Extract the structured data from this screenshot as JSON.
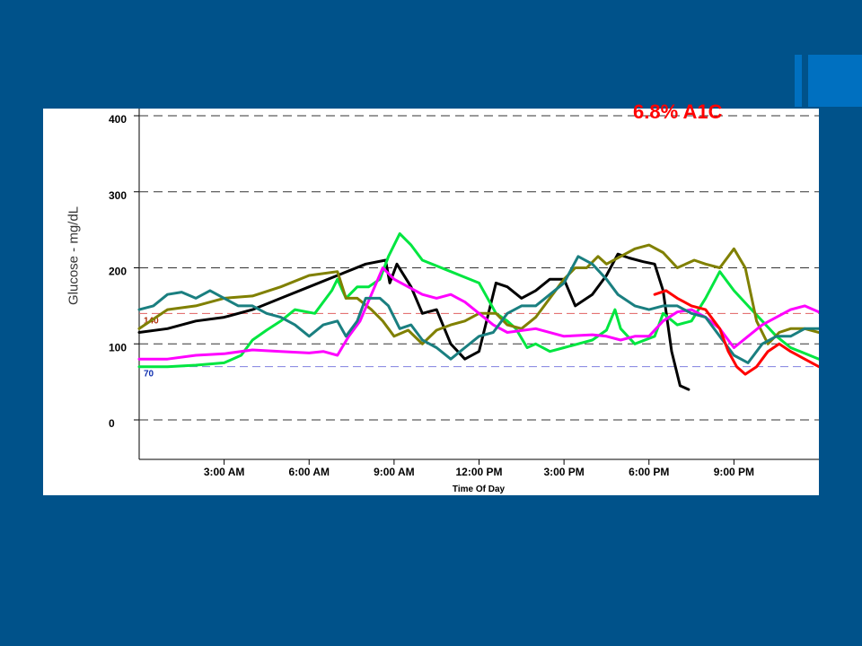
{
  "colors": {
    "background": "#00528a",
    "accent": "#0070c0",
    "title": "#ff0000"
  },
  "chart_data": {
    "type": "line",
    "title": "6.8% A1C",
    "xlabel": "Time Of Day",
    "ylabel": "Glucose - mg/dL",
    "xlim": [
      0,
      24
    ],
    "ylim": [
      -20,
      400
    ],
    "y_ticks": [
      0,
      100,
      200,
      300,
      400
    ],
    "x_ticks": [
      {
        "hour": 3,
        "label": "3:00 AM"
      },
      {
        "hour": 6,
        "label": "6:00 AM"
      },
      {
        "hour": 9,
        "label": "9:00 AM"
      },
      {
        "hour": 12,
        "label": "12:00 PM"
      },
      {
        "hour": 15,
        "label": "3:00 PM"
      },
      {
        "hour": 18,
        "label": "6:00 PM"
      },
      {
        "hour": 21,
        "label": "9:00 PM"
      }
    ],
    "grid": "horizontal-dashed",
    "reference_lines": [
      {
        "value": 140,
        "label": "140",
        "color": "#e06060",
        "text_color": "#b03010"
      },
      {
        "value": 70,
        "label": "70",
        "color": "#8080e0",
        "text_color": "#1030b0"
      }
    ],
    "series": [
      {
        "color": "#000000",
        "points": [
          [
            0,
            115
          ],
          [
            1,
            120
          ],
          [
            2,
            130
          ],
          [
            3,
            135
          ],
          [
            4,
            145
          ],
          [
            5,
            160
          ],
          [
            6,
            175
          ],
          [
            7,
            190
          ],
          [
            8,
            205
          ],
          [
            8.7,
            210
          ],
          [
            8.85,
            180
          ],
          [
            9.1,
            205
          ],
          [
            9.6,
            175
          ],
          [
            10,
            140
          ],
          [
            10.5,
            145
          ],
          [
            11,
            100
          ],
          [
            11.5,
            80
          ],
          [
            12,
            90
          ],
          [
            12.6,
            180
          ],
          [
            13,
            175
          ],
          [
            13.5,
            160
          ],
          [
            14,
            170
          ],
          [
            14.5,
            185
          ],
          [
            15,
            185
          ],
          [
            15.4,
            150
          ],
          [
            16,
            165
          ],
          [
            16.5,
            190
          ],
          [
            16.9,
            218
          ],
          [
            17.3,
            213
          ],
          [
            17.8,
            208
          ],
          [
            18.2,
            205
          ],
          [
            18.5,
            170
          ],
          [
            18.8,
            90
          ],
          [
            19.1,
            45
          ],
          [
            19.4,
            40
          ]
        ]
      },
      {
        "color": "#00e640",
        "points": [
          [
            0,
            70
          ],
          [
            1,
            70
          ],
          [
            2,
            72
          ],
          [
            3,
            75
          ],
          [
            3.6,
            85
          ],
          [
            4,
            105
          ],
          [
            4.5,
            118
          ],
          [
            5,
            130
          ],
          [
            5.5,
            145
          ],
          [
            6.2,
            140
          ],
          [
            6.8,
            170
          ],
          [
            7,
            185
          ],
          [
            7.3,
            160
          ],
          [
            7.7,
            175
          ],
          [
            8.1,
            175
          ],
          [
            8.5,
            185
          ],
          [
            8.8,
            215
          ],
          [
            9.2,
            245
          ],
          [
            9.6,
            230
          ],
          [
            10,
            210
          ],
          [
            11,
            195
          ],
          [
            12,
            180
          ],
          [
            12.6,
            140
          ],
          [
            13,
            130
          ],
          [
            13.3,
            120
          ],
          [
            13.7,
            95
          ],
          [
            14,
            100
          ],
          [
            14.5,
            90
          ],
          [
            15,
            95
          ],
          [
            16,
            105
          ],
          [
            16.5,
            118
          ],
          [
            16.8,
            145
          ],
          [
            17,
            120
          ],
          [
            17.5,
            100
          ],
          [
            18.2,
            110
          ],
          [
            18.5,
            140
          ],
          [
            19,
            125
          ],
          [
            19.5,
            130
          ],
          [
            20,
            160
          ],
          [
            20.5,
            195
          ],
          [
            21,
            170
          ],
          [
            21.5,
            150
          ],
          [
            22,
            130
          ],
          [
            22.5,
            110
          ],
          [
            23,
            95
          ],
          [
            24,
            80
          ]
        ]
      },
      {
        "color": "#808000",
        "points": [
          [
            0,
            120
          ],
          [
            1,
            145
          ],
          [
            2,
            150
          ],
          [
            3,
            160
          ],
          [
            4,
            163
          ],
          [
            5,
            175
          ],
          [
            6,
            190
          ],
          [
            7,
            195
          ],
          [
            7.3,
            160
          ],
          [
            7.7,
            160
          ],
          [
            8.2,
            145
          ],
          [
            8.6,
            130
          ],
          [
            9,
            110
          ],
          [
            9.5,
            118
          ],
          [
            10,
            100
          ],
          [
            10.5,
            118
          ],
          [
            11,
            125
          ],
          [
            11.5,
            130
          ],
          [
            12,
            140
          ],
          [
            12.6,
            140
          ],
          [
            13,
            125
          ],
          [
            13.5,
            120
          ],
          [
            14,
            135
          ],
          [
            15,
            185
          ],
          [
            15.4,
            200
          ],
          [
            15.8,
            200
          ],
          [
            16.2,
            215
          ],
          [
            16.5,
            205
          ],
          [
            17,
            215
          ],
          [
            17.5,
            225
          ],
          [
            18,
            230
          ],
          [
            18.5,
            220
          ],
          [
            19,
            200
          ],
          [
            19.6,
            210
          ],
          [
            20,
            205
          ],
          [
            20.5,
            200
          ],
          [
            21,
            225
          ],
          [
            21.4,
            200
          ],
          [
            21.8,
            130
          ],
          [
            22.2,
            100
          ],
          [
            22.6,
            115
          ],
          [
            23,
            120
          ],
          [
            23.5,
            120
          ],
          [
            24,
            115
          ]
        ]
      },
      {
        "color": "#ff00ff",
        "points": [
          [
            0,
            80
          ],
          [
            1,
            80
          ],
          [
            2,
            85
          ],
          [
            3,
            87
          ],
          [
            4,
            92
          ],
          [
            5,
            90
          ],
          [
            6,
            88
          ],
          [
            6.5,
            90
          ],
          [
            7,
            85
          ],
          [
            7.4,
            110
          ],
          [
            7.8,
            130
          ],
          [
            8.2,
            165
          ],
          [
            8.6,
            200
          ],
          [
            9,
            185
          ],
          [
            9.5,
            175
          ],
          [
            10,
            165
          ],
          [
            10.5,
            160
          ],
          [
            11,
            165
          ],
          [
            11.5,
            155
          ],
          [
            12,
            140
          ],
          [
            12.5,
            125
          ],
          [
            13,
            115
          ],
          [
            14,
            120
          ],
          [
            15,
            110
          ],
          [
            16,
            112
          ],
          [
            16.5,
            110
          ],
          [
            17,
            105
          ],
          [
            17.5,
            110
          ],
          [
            18,
            110
          ],
          [
            18.5,
            130
          ],
          [
            19,
            142
          ],
          [
            19.5,
            145
          ],
          [
            20,
            135
          ],
          [
            20.5,
            120
          ],
          [
            21,
            95
          ],
          [
            21.5,
            110
          ],
          [
            22,
            125
          ],
          [
            22.5,
            135
          ],
          [
            23,
            145
          ],
          [
            23.5,
            150
          ],
          [
            24,
            142
          ]
        ]
      },
      {
        "color": "#1a7f80",
        "points": [
          [
            0,
            145
          ],
          [
            0.5,
            150
          ],
          [
            1,
            165
          ],
          [
            1.5,
            168
          ],
          [
            2,
            160
          ],
          [
            2.5,
            170
          ],
          [
            3,
            160
          ],
          [
            3.5,
            150
          ],
          [
            4,
            150
          ],
          [
            4.5,
            140
          ],
          [
            5,
            135
          ],
          [
            5.5,
            125
          ],
          [
            6,
            110
          ],
          [
            6.5,
            125
          ],
          [
            7,
            130
          ],
          [
            7.3,
            110
          ],
          [
            7.7,
            130
          ],
          [
            8,
            160
          ],
          [
            8.5,
            160
          ],
          [
            8.8,
            150
          ],
          [
            9.2,
            120
          ],
          [
            9.6,
            125
          ],
          [
            10,
            105
          ],
          [
            10.5,
            95
          ],
          [
            11,
            80
          ],
          [
            11.5,
            95
          ],
          [
            12,
            110
          ],
          [
            12.5,
            115
          ],
          [
            13,
            140
          ],
          [
            13.5,
            150
          ],
          [
            14,
            150
          ],
          [
            14.5,
            165
          ],
          [
            15,
            180
          ],
          [
            15.5,
            215
          ],
          [
            16,
            205
          ],
          [
            16.5,
            185
          ],
          [
            16.9,
            165
          ],
          [
            17.5,
            150
          ],
          [
            18,
            145
          ],
          [
            18.5,
            150
          ],
          [
            19,
            150
          ],
          [
            19.5,
            140
          ],
          [
            20,
            135
          ],
          [
            20.5,
            110
          ],
          [
            21,
            85
          ],
          [
            21.5,
            75
          ],
          [
            22,
            100
          ],
          [
            22.5,
            110
          ],
          [
            23,
            110
          ],
          [
            23.5,
            120
          ],
          [
            24,
            120
          ]
        ]
      },
      {
        "color": "#ff0000",
        "points": [
          [
            18.2,
            165
          ],
          [
            18.6,
            170
          ],
          [
            19,
            160
          ],
          [
            19.5,
            150
          ],
          [
            20,
            145
          ],
          [
            20.5,
            120
          ],
          [
            20.8,
            90
          ],
          [
            21.1,
            70
          ],
          [
            21.4,
            60
          ],
          [
            21.8,
            70
          ],
          [
            22.2,
            90
          ],
          [
            22.6,
            100
          ],
          [
            23,
            90
          ],
          [
            23.5,
            80
          ],
          [
            24,
            70
          ]
        ]
      }
    ]
  }
}
